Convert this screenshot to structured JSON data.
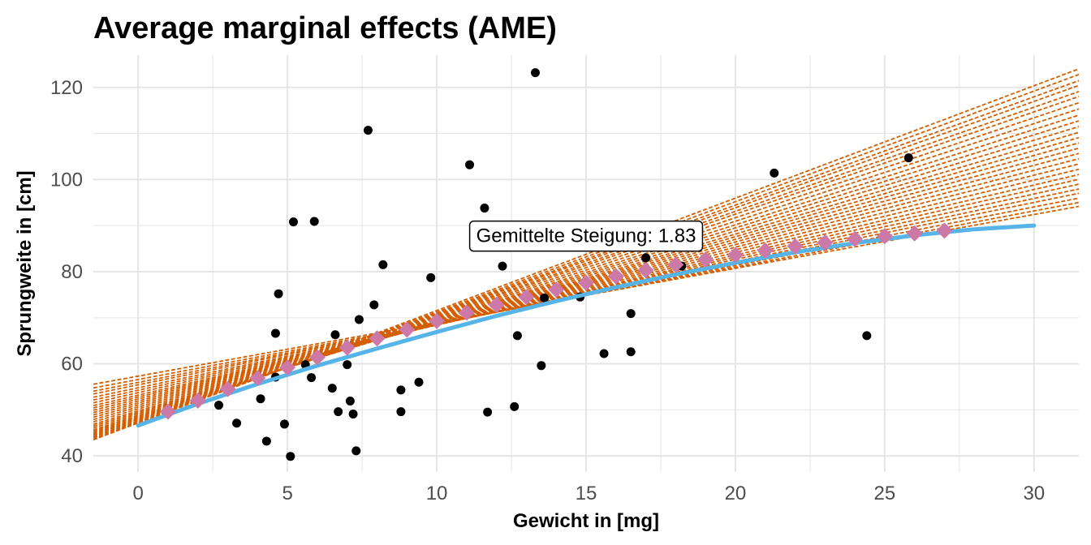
{
  "chart_data": {
    "type": "scatter",
    "title": "Average marginal effects (AME)",
    "xlabel": "Gewicht in [mg]",
    "ylabel": "Sprungweite in [cm]",
    "xlim": [
      -1.5,
      31.5
    ],
    "ylim": [
      36.5,
      127
    ],
    "x_ticks": [
      0,
      5,
      10,
      15,
      20,
      25,
      30
    ],
    "y_ticks": [
      40,
      60,
      80,
      100,
      120
    ],
    "grid": true,
    "legend": "none",
    "annotation": {
      "text": "Gemittelte Steigung: 1.83",
      "x": 15,
      "y": 87.8
    },
    "colors": {
      "points": "#000000",
      "fit_curve": "#56B4E9",
      "tangent_lines": "#D55E00",
      "tangent_points": "#CC79A7",
      "grid": "#e5e5e5"
    },
    "points": [
      {
        "x": 2.7,
        "y": 51.0
      },
      {
        "x": 3.3,
        "y": 47.1
      },
      {
        "x": 4.1,
        "y": 52.4
      },
      {
        "x": 4.3,
        "y": 43.2
      },
      {
        "x": 4.6,
        "y": 66.6
      },
      {
        "x": 4.7,
        "y": 75.2
      },
      {
        "x": 4.6,
        "y": 57.1
      },
      {
        "x": 4.9,
        "y": 46.9
      },
      {
        "x": 5.1,
        "y": 39.9
      },
      {
        "x": 5.2,
        "y": 90.8
      },
      {
        "x": 5.6,
        "y": 59.8
      },
      {
        "x": 5.8,
        "y": 57.0
      },
      {
        "x": 5.9,
        "y": 90.9
      },
      {
        "x": 6.5,
        "y": 54.7
      },
      {
        "x": 6.6,
        "y": 66.3
      },
      {
        "x": 6.7,
        "y": 49.6
      },
      {
        "x": 7.0,
        "y": 59.8
      },
      {
        "x": 7.1,
        "y": 51.9
      },
      {
        "x": 7.2,
        "y": 49.1
      },
      {
        "x": 7.3,
        "y": 41.1
      },
      {
        "x": 7.4,
        "y": 69.6
      },
      {
        "x": 7.7,
        "y": 110.7
      },
      {
        "x": 7.9,
        "y": 72.8
      },
      {
        "x": 8.2,
        "y": 81.5
      },
      {
        "x": 8.8,
        "y": 54.3
      },
      {
        "x": 8.8,
        "y": 49.6
      },
      {
        "x": 9.4,
        "y": 56.0
      },
      {
        "x": 9.8,
        "y": 78.7
      },
      {
        "x": 11.1,
        "y": 103.2
      },
      {
        "x": 11.6,
        "y": 93.8
      },
      {
        "x": 11.7,
        "y": 49.5
      },
      {
        "x": 12.2,
        "y": 81.2
      },
      {
        "x": 12.6,
        "y": 50.7
      },
      {
        "x": 12.7,
        "y": 66.1
      },
      {
        "x": 13.3,
        "y": 123.2
      },
      {
        "x": 13.5,
        "y": 59.6
      },
      {
        "x": 13.6,
        "y": 74.3
      },
      {
        "x": 14.8,
        "y": 74.5
      },
      {
        "x": 15.6,
        "y": 62.2
      },
      {
        "x": 16.5,
        "y": 70.9
      },
      {
        "x": 16.5,
        "y": 62.6
      },
      {
        "x": 17.0,
        "y": 83.0
      },
      {
        "x": 18.2,
        "y": 81.2
      },
      {
        "x": 21.3,
        "y": 101.4
      },
      {
        "x": 24.4,
        "y": 66.1
      },
      {
        "x": 25.8,
        "y": 104.7
      }
    ],
    "fit_curve": {
      "x": [
        0,
        2,
        4,
        6,
        8,
        10,
        12,
        14,
        16,
        18,
        20,
        22,
        24,
        26,
        28,
        30
      ],
      "y": [
        46.6,
        51.3,
        55.6,
        59.6,
        63.3,
        66.9,
        70.4,
        73.6,
        76.6,
        79.4,
        81.9,
        84.2,
        86.2,
        87.9,
        89.2,
        90.0
      ]
    },
    "tangent_points": {
      "x": [
        1,
        2,
        3,
        4,
        5,
        6,
        7,
        8,
        9,
        10,
        11,
        12,
        13,
        14,
        15,
        16,
        17,
        18,
        19,
        20,
        21,
        22,
        23,
        24,
        25,
        26,
        27
      ],
      "y": [
        49.6,
        52.0,
        54.5,
        56.9,
        59.2,
        61.4,
        63.5,
        65.5,
        67.4,
        69.3,
        71.1,
        72.8,
        74.5,
        76.1,
        77.6,
        79.0,
        80.3,
        81.5,
        82.6,
        83.6,
        84.6,
        85.5,
        86.3,
        87.1,
        87.7,
        88.3,
        88.9
      ]
    },
    "tangent_slopes": [
      2.44,
      2.4,
      2.35,
      2.31,
      2.26,
      2.22,
      2.17,
      2.12,
      2.07,
      2.02,
      1.97,
      1.92,
      1.87,
      1.82,
      1.77,
      1.72,
      1.67,
      1.62,
      1.57,
      1.52,
      1.47,
      1.42,
      1.37,
      1.32,
      1.27,
      1.22,
      1.17
    ]
  }
}
